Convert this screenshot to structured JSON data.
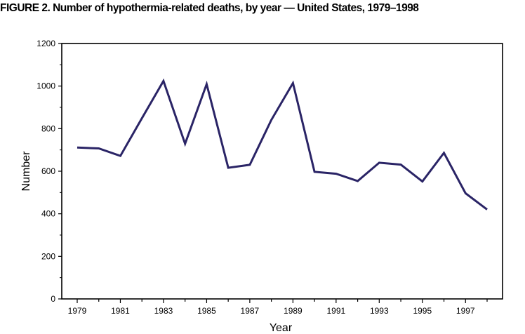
{
  "title": "FIGURE 2. Number of hypothermia-related deaths, by year — United States, 1979–1998",
  "chart_data": {
    "type": "line",
    "title": "FIGURE 2. Number of hypothermia-related deaths, by year — United States, 1979–1998",
    "xlabel": "Year",
    "ylabel": "Number",
    "x": [
      1979,
      1980,
      1981,
      1982,
      1983,
      1984,
      1985,
      1986,
      1987,
      1988,
      1989,
      1990,
      1991,
      1992,
      1993,
      1994,
      1995,
      1996,
      1997,
      1998
    ],
    "series": [
      {
        "values": [
          711,
          707,
          672,
          849,
          1024,
          729,
          1009,
          616,
          630,
          841,
          1014,
          597,
          588,
          554,
          640,
          631,
          552,
          686,
          496,
          420
        ]
      }
    ],
    "xlim": [
      1979,
      1998
    ],
    "ylim": [
      0,
      1200
    ],
    "x_tick_labels": [
      "1979",
      "1981",
      "1983",
      "1985",
      "1987",
      "1989",
      "1991",
      "1993",
      "1995",
      "1997"
    ],
    "y_tick_labels": [
      "0",
      "200",
      "400",
      "600",
      "800",
      "1000",
      "1200"
    ],
    "grid": false,
    "legend": "none",
    "line_color": "#2a2466",
    "axis_color": "#000000"
  }
}
